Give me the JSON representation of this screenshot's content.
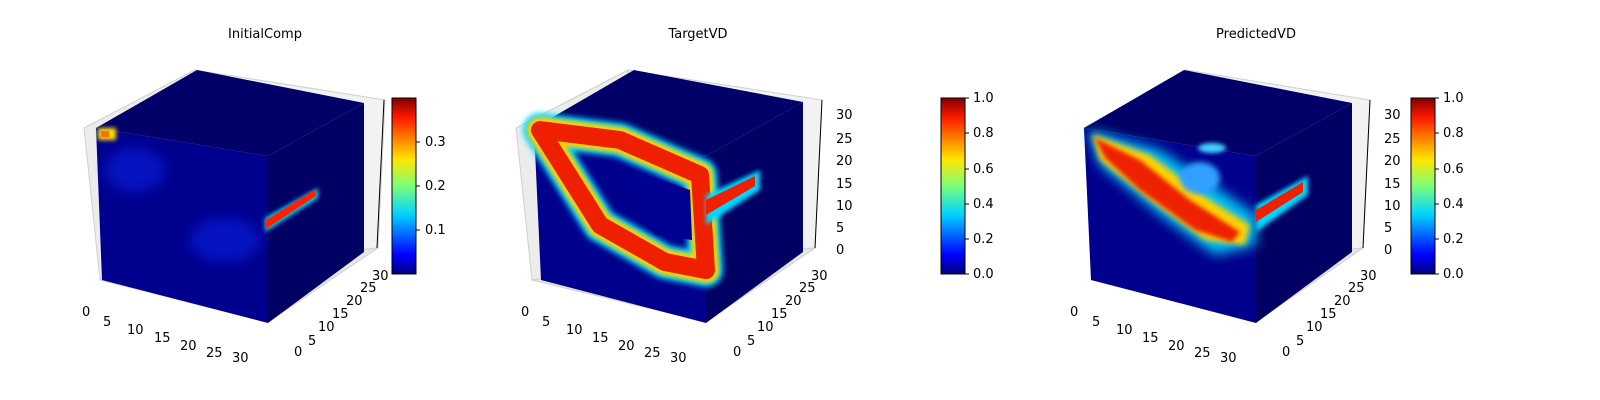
{
  "chart_data": [
    {
      "type": "heatmap",
      "title": "InitialComp",
      "x_ticks": [
        "0",
        "5",
        "10",
        "15",
        "20",
        "25",
        "30"
      ],
      "y_ticks": [
        "0",
        "5",
        "10",
        "15",
        "20",
        "25",
        "30"
      ],
      "z_ticks": [],
      "colormap": "jet",
      "colorbar": {
        "range": [
          0.0,
          0.4
        ],
        "ticks": [
          "0.1",
          "0.2",
          "0.3"
        ]
      },
      "grid": true
    },
    {
      "type": "heatmap",
      "title": "TargetVD",
      "x_ticks": [
        "0",
        "5",
        "10",
        "15",
        "20",
        "25",
        "30"
      ],
      "y_ticks": [
        "0",
        "5",
        "10",
        "15",
        "20",
        "25",
        "30"
      ],
      "z_ticks": [
        "0",
        "5",
        "10",
        "15",
        "20",
        "25",
        "30"
      ],
      "colormap": "jet",
      "colorbar": {
        "range": [
          0.0,
          1.0
        ],
        "ticks": [
          "0.0",
          "0.2",
          "0.4",
          "0.6",
          "0.8",
          "1.0"
        ]
      },
      "grid": true
    },
    {
      "type": "heatmap",
      "title": "PredictedVD",
      "x_ticks": [
        "0",
        "5",
        "10",
        "15",
        "20",
        "25",
        "30"
      ],
      "y_ticks": [
        "0",
        "5",
        "10",
        "15",
        "20",
        "25",
        "30"
      ],
      "z_ticks": [
        "0",
        "5",
        "10",
        "15",
        "20",
        "25",
        "30"
      ],
      "colormap": "jet",
      "colorbar": {
        "range": [
          0.0,
          1.0
        ],
        "ticks": [
          "0.0",
          "0.2",
          "0.4",
          "0.6",
          "0.8",
          "1.0"
        ]
      },
      "grid": true
    }
  ]
}
